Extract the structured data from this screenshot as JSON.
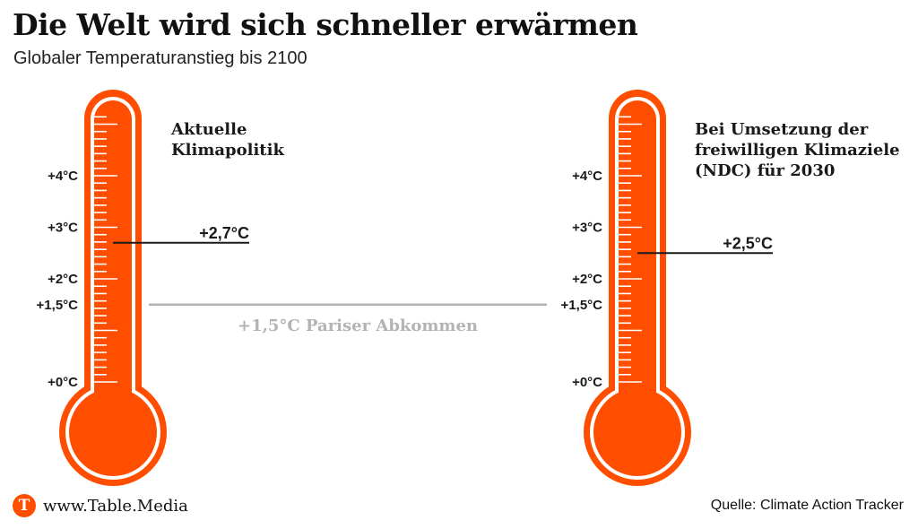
{
  "title": "Die Welt wird sich schneller erwärmen",
  "subtitle": "Globaler Temperaturanstieg bis 2100",
  "footer": {
    "logo_letter": "T",
    "site": "www.Table.Media",
    "source": "Quelle: Climate Action Tracker"
  },
  "colors": {
    "thermometer_fill": "#ff4e00",
    "reference_line": "#b3b3b3",
    "marker_line": "#1a1a1a"
  },
  "chart_data": [
    {
      "type": "thermometer",
      "heading": [
        "Aktuelle",
        "Klimapolitik"
      ],
      "ticks": [
        {
          "value": 4,
          "label": "+4°C"
        },
        {
          "value": 3,
          "label": "+3°C"
        },
        {
          "value": 2,
          "label": "+2°C"
        },
        {
          "value": 1.5,
          "label": "+1,5°C"
        },
        {
          "value": 0,
          "label": "+0°C"
        }
      ],
      "value": 2.7,
      "value_label": "+2,7°C"
    },
    {
      "type": "thermometer",
      "heading": [
        "Bei Umsetzung der",
        "freiwilligen Klimaziele",
        "(NDC) für 2030"
      ],
      "ticks": [
        {
          "value": 4,
          "label": "+4°C"
        },
        {
          "value": 3,
          "label": "+3°C"
        },
        {
          "value": 2,
          "label": "+2°C"
        },
        {
          "value": 1.5,
          "label": "+1,5°C"
        },
        {
          "value": 0,
          "label": "+0°C"
        }
      ],
      "value": 2.5,
      "value_label": "+2,5°C"
    }
  ],
  "reference": {
    "value": 1.5,
    "label": "+1,5°C Pariser Abkommen"
  }
}
